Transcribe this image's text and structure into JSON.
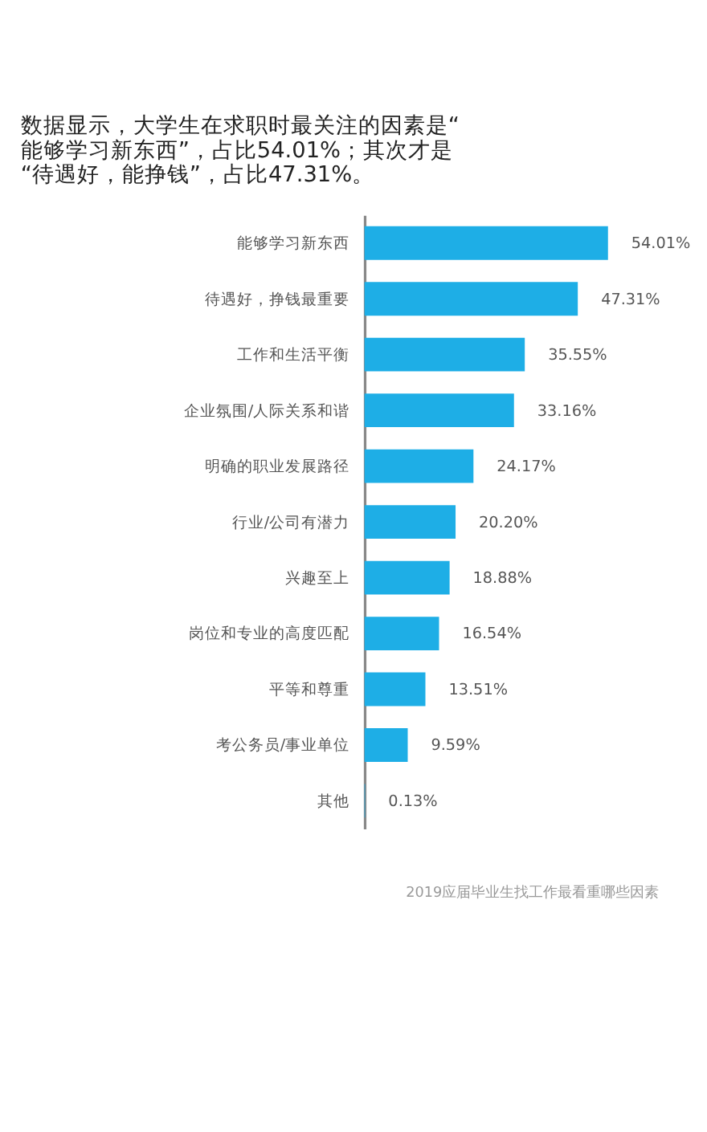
{
  "chart_data": {
    "type": "bar",
    "orientation": "horizontal",
    "title": "数据显示，大学生在求职时最关注的因素是“能够学习新东西”，占比54.01%；其次才是“待遇好，能挣钱”，占比47.31%。",
    "categories": [
      "能够学习新东西",
      "待遇好，挣钱最重要",
      "工作和生活平衡",
      "企业氛围/人际关系和谐",
      "明确的职业发展路径",
      "行业/公司有潜力",
      "兴趣至上",
      "岗位和专业的高度匹配",
      "平等和尊重",
      "考公务员/事业单位",
      "其他"
    ],
    "values": [
      54.01,
      47.31,
      35.55,
      33.16,
      24.17,
      20.2,
      18.88,
      16.54,
      13.51,
      9.59,
      0.13
    ],
    "value_labels": [
      "54.01%",
      "47.31%",
      "35.55%",
      "33.16%",
      "24.17%",
      "20.20%",
      "18.88%",
      "16.54%",
      "13.51%",
      "9.59%",
      "0.13%"
    ],
    "color": "#1eaee6",
    "tick_labels": "y",
    "grid": false,
    "annotations": [
      "2019应届毕业生找工作最看重哪些因素"
    ]
  }
}
